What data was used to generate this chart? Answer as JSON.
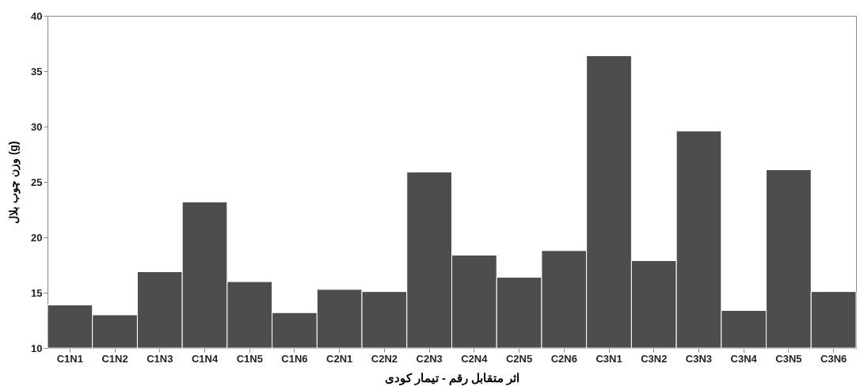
{
  "chart_data": {
    "type": "bar",
    "xlabel": "اثر متقابل رقم - تیمار کودی",
    "ylabel": "وزن چوب بلال (g)",
    "categories": [
      "C1N1",
      "C1N2",
      "C1N3",
      "C1N4",
      "C1N5",
      "C1N6",
      "C2N1",
      "C2N2",
      "C2N3",
      "C2N4",
      "C2N5",
      "C2N6",
      "C3N1",
      "C3N2",
      "C3N3",
      "C3N4",
      "C3N5",
      "C3N6"
    ],
    "values": [
      13.9,
      13.0,
      16.9,
      23.2,
      16.0,
      13.2,
      15.3,
      15.1,
      25.9,
      18.4,
      16.4,
      18.8,
      36.4,
      17.9,
      29.6,
      13.4,
      26.1,
      15.1
    ],
    "color": "#4d4d4d",
    "ylim": [
      10,
      40
    ],
    "yticks": [
      10,
      15,
      20,
      25,
      30,
      35,
      40
    ],
    "grid": false
  }
}
